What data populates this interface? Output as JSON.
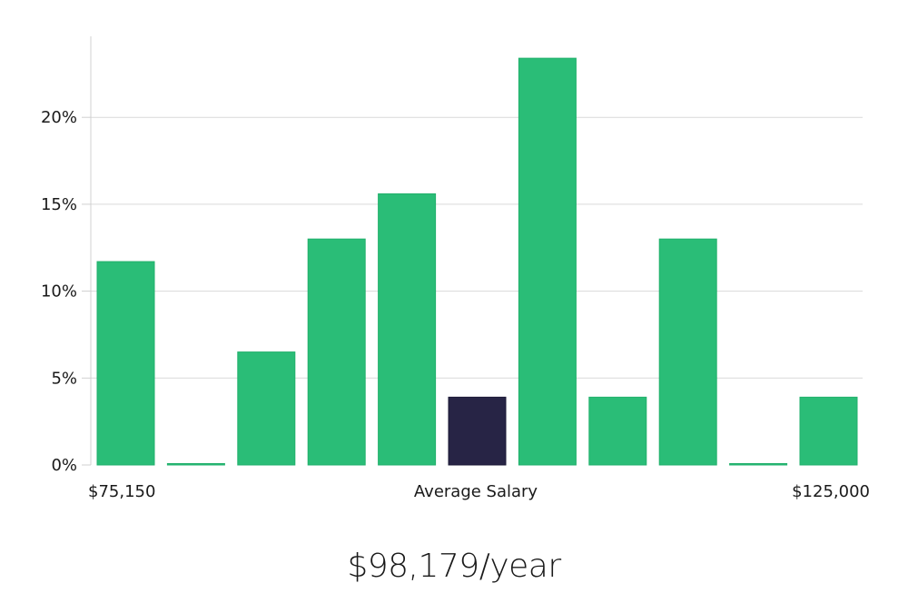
{
  "chart_data": {
    "type": "bar",
    "title": "",
    "xlabel": "Average Salary",
    "ylabel": "",
    "x_min_label": "$75,150",
    "x_max_label": "$125,000",
    "ylim": [
      0,
      24.5
    ],
    "y_ticks": [
      0,
      5,
      10,
      15,
      20
    ],
    "y_tick_labels": [
      "0%",
      "5%",
      "10%",
      "15%",
      "20%"
    ],
    "values": [
      11.7,
      0,
      6.5,
      13.0,
      15.6,
      3.9,
      23.4,
      3.9,
      13.0,
      0,
      3.9
    ],
    "highlight_index": 5,
    "grid": true,
    "legend": "none",
    "colors": {
      "bar": "#2abd77",
      "highlight": "#272445"
    }
  },
  "summary": {
    "salary_text": "$98,179/year"
  }
}
